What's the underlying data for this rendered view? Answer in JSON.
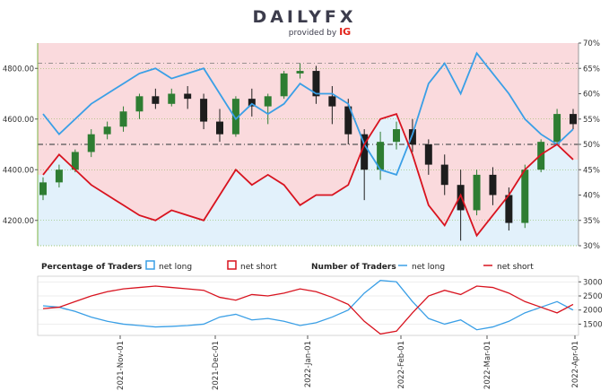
{
  "brand": {
    "logo_main": "DAILYFX",
    "logo_sub": "provided by",
    "logo_ig": "IG",
    "color_main": "#3c3c4c",
    "color_ig": "#e2231a"
  },
  "colors": {
    "net_long": "#3a9fe6",
    "net_short": "#d8131f",
    "long_fill": "#e2f1fb",
    "short_fill": "#fadadd",
    "bull_candle": "#2e7d32",
    "bear_candle": "#1d1d1d",
    "grid": "#7cb342"
  },
  "chart_data": [
    {
      "type": "line",
      "name": "price-and-percentage",
      "left_axis": {
        "ticks": [
          "4200.00",
          "4400.00",
          "4600.00",
          "4800.00"
        ],
        "ylim": [
          4100,
          4900
        ]
      },
      "right_axis": {
        "ticks": [
          "30%",
          "35%",
          "40%",
          "45%",
          "50%",
          "55%",
          "60%",
          "65%",
          "70%"
        ],
        "ylim": [
          30,
          70
        ]
      },
      "reference_lines": [
        {
          "label": "upper",
          "value": 4820
        },
        {
          "label": "fifty",
          "value_pct": 50
        }
      ],
      "x": [
        "2021-10-04",
        "2021-10-08",
        "2021-10-14",
        "2021-10-20",
        "2021-10-26",
        "2021-11-01",
        "2021-11-05",
        "2021-11-11",
        "2021-11-17",
        "2021-11-23",
        "2021-11-29",
        "2021-12-03",
        "2021-12-09",
        "2021-12-15",
        "2021-12-21",
        "2021-12-27",
        "2022-01-01",
        "2022-01-05",
        "2022-01-11",
        "2022-01-17",
        "2022-01-21",
        "2022-01-27",
        "2022-02-01",
        "2022-02-05",
        "2022-02-11",
        "2022-02-17",
        "2022-02-23",
        "2022-03-01",
        "2022-03-05",
        "2022-03-11",
        "2022-03-17",
        "2022-03-23",
        "2022-03-29",
        "2022-04-01"
      ],
      "candles": [
        {
          "o": 4300,
          "h": 4370,
          "l": 4280,
          "c": 4350
        },
        {
          "o": 4350,
          "h": 4420,
          "l": 4330,
          "c": 4400
        },
        {
          "o": 4400,
          "h": 4480,
          "l": 4390,
          "c": 4470
        },
        {
          "o": 4470,
          "h": 4560,
          "l": 4450,
          "c": 4540
        },
        {
          "o": 4540,
          "h": 4590,
          "l": 4520,
          "c": 4570
        },
        {
          "o": 4570,
          "h": 4650,
          "l": 4550,
          "c": 4630
        },
        {
          "o": 4630,
          "h": 4700,
          "l": 4600,
          "c": 4690
        },
        {
          "o": 4690,
          "h": 4720,
          "l": 4640,
          "c": 4660
        },
        {
          "o": 4660,
          "h": 4720,
          "l": 4650,
          "c": 4700
        },
        {
          "o": 4700,
          "h": 4730,
          "l": 4640,
          "c": 4680
        },
        {
          "o": 4680,
          "h": 4700,
          "l": 4560,
          "c": 4590
        },
        {
          "o": 4590,
          "h": 4640,
          "l": 4510,
          "c": 4540
        },
        {
          "o": 4540,
          "h": 4690,
          "l": 4530,
          "c": 4680
        },
        {
          "o": 4680,
          "h": 4720,
          "l": 4610,
          "c": 4650
        },
        {
          "o": 4650,
          "h": 4700,
          "l": 4580,
          "c": 4690
        },
        {
          "o": 4690,
          "h": 4790,
          "l": 4680,
          "c": 4780
        },
        {
          "o": 4780,
          "h": 4820,
          "l": 4760,
          "c": 4790
        },
        {
          "o": 4790,
          "h": 4810,
          "l": 4660,
          "c": 4690
        },
        {
          "o": 4690,
          "h": 4730,
          "l": 4580,
          "c": 4650
        },
        {
          "o": 4650,
          "h": 4680,
          "l": 4500,
          "c": 4540
        },
        {
          "o": 4540,
          "h": 4560,
          "l": 4280,
          "c": 4400
        },
        {
          "o": 4400,
          "h": 4550,
          "l": 4360,
          "c": 4510
        },
        {
          "o": 4510,
          "h": 4590,
          "l": 4480,
          "c": 4560
        },
        {
          "o": 4560,
          "h": 4600,
          "l": 4470,
          "c": 4500
        },
        {
          "o": 4500,
          "h": 4520,
          "l": 4380,
          "c": 4420
        },
        {
          "o": 4420,
          "h": 4460,
          "l": 4300,
          "c": 4340
        },
        {
          "o": 4340,
          "h": 4400,
          "l": 4120,
          "c": 4240
        },
        {
          "o": 4240,
          "h": 4400,
          "l": 4220,
          "c": 4380
        },
        {
          "o": 4380,
          "h": 4410,
          "l": 4260,
          "c": 4300
        },
        {
          "o": 4300,
          "h": 4330,
          "l": 4160,
          "c": 4190
        },
        {
          "o": 4190,
          "h": 4420,
          "l": 4170,
          "c": 4400
        },
        {
          "o": 4400,
          "h": 4520,
          "l": 4390,
          "c": 4510
        },
        {
          "o": 4510,
          "h": 4640,
          "l": 4500,
          "c": 4620
        },
        {
          "o": 4620,
          "h": 4640,
          "l": 4560,
          "c": 4580
        }
      ],
      "series": [
        {
          "name": "net long",
          "values": [
            56,
            52,
            55,
            58,
            60,
            62,
            64,
            65,
            63,
            64,
            65,
            60,
            55,
            58,
            56,
            58,
            62,
            60,
            60,
            58,
            50,
            45,
            44,
            52,
            62,
            66,
            60,
            68,
            64,
            60,
            55,
            52,
            50,
            53
          ]
        },
        {
          "name": "net short",
          "values": [
            44,
            48,
            45,
            42,
            40,
            38,
            36,
            35,
            37,
            36,
            35,
            40,
            45,
            42,
            44,
            42,
            38,
            40,
            40,
            42,
            50,
            55,
            56,
            48,
            38,
            34,
            40,
            32,
            36,
            40,
            45,
            48,
            50,
            47
          ]
        }
      ]
    },
    {
      "type": "line",
      "name": "number-of-traders",
      "right_axis": {
        "ticks": [
          "1500",
          "2000",
          "2500",
          "3000"
        ],
        "ylim": [
          1100,
          3200
        ]
      },
      "x_ticks": [
        "2021-Nov-01",
        "2021-Dec-01",
        "2022-Jan-01",
        "2022-Feb-01",
        "2022-Mar-01",
        "2022-Apr-01"
      ],
      "percentage_series": [
        {
          "name": "net long",
          "values": [
            2150,
            2100,
            1950,
            1750,
            1600,
            1500,
            1450,
            1400,
            1420,
            1450,
            1500,
            1750,
            1850,
            1650,
            1700,
            1600,
            1450,
            1550,
            1750,
            2000,
            2600,
            3050,
            3000,
            2300,
            1700,
            1500,
            1650,
            1300,
            1400,
            1600,
            1900,
            2100,
            2300,
            2000
          ]
        },
        {
          "name": "net short",
          "values": [
            2050,
            2100,
            2300,
            2500,
            2650,
            2750,
            2800,
            2850,
            2800,
            2750,
            2700,
            2450,
            2350,
            2550,
            2500,
            2600,
            2750,
            2650,
            2450,
            2200,
            1600,
            1150,
            1250,
            1900,
            2500,
            2700,
            2550,
            2850,
            2800,
            2600,
            2300,
            2100,
            1900,
            2200
          ]
        }
      ],
      "count_series": [
        {
          "name": "net long",
          "values": [
            2400,
            2300,
            2250,
            2150,
            2050,
            1900,
            1800,
            1750,
            1780,
            1800,
            1850,
            1950,
            1900,
            1850,
            1800,
            1750,
            1700,
            1800,
            1900,
            2100,
            2500,
            2950,
            2900,
            2450,
            2050,
            1850,
            1950,
            1800,
            1850,
            1900,
            2000,
            2100,
            2050,
            2100
          ]
        },
        {
          "name": "net short",
          "values": [
            1950,
            2050,
            2200,
            2350,
            2450,
            2500,
            2550,
            2600,
            2550,
            2500,
            2450,
            2350,
            2250,
            2350,
            2300,
            2350,
            2450,
            2400,
            2300,
            2150,
            1800,
            1450,
            1500,
            1850,
            2200,
            2350,
            2250,
            2400,
            2350,
            2250,
            2100,
            2000,
            1950,
            2000
          ]
        }
      ]
    }
  ],
  "legend": {
    "percentage_label": "Percentage of Traders",
    "number_label": "Number of Traders",
    "net_long": "net long",
    "net_short": "net short"
  }
}
